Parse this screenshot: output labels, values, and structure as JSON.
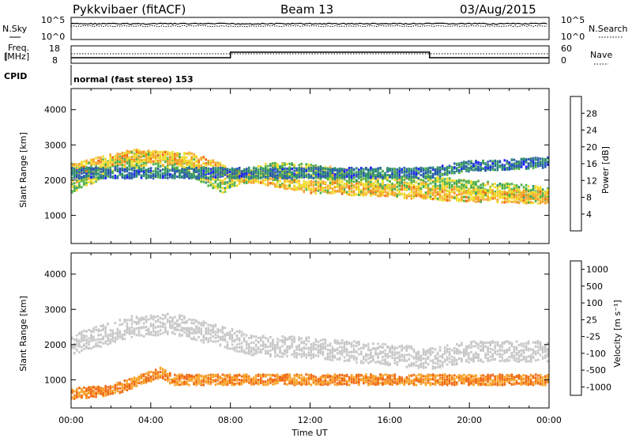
{
  "header": {
    "radar": "Pykkvibaer (fitACF)",
    "beam": "Beam 13",
    "date": "03/Aug/2015"
  },
  "params": {
    "nsky_label": "N.Sky",
    "nsearch_label": "N.Search",
    "noise_ticks": [
      "10^5",
      "10^0"
    ],
    "freq_label_1": "Freq.",
    "freq_label_2": "[MHz]",
    "freq_ticks": [
      18,
      8
    ],
    "nave_label": "Nave",
    "nave_ticks": [
      60,
      0
    ],
    "cpid_label": "CPID",
    "cpid_text": "normal (fast stereo) 153"
  },
  "x_axis": {
    "label": "Time UT",
    "ticks": [
      "00:00",
      "04:00",
      "08:00",
      "12:00",
      "16:00",
      "20:00",
      "00:00"
    ],
    "range_hours": [
      0,
      24
    ]
  },
  "chart_data": [
    {
      "type": "heatmap",
      "panel": "power",
      "ylabel": "Slant Range [km]",
      "yticks": [
        1000,
        2000,
        3000,
        4000
      ],
      "ylim": [
        200,
        4600
      ],
      "colorbar_label": "Power [dB]",
      "colorbar_ticks": [
        4,
        8,
        12,
        16,
        20,
        24,
        28
      ],
      "colorbar_range": [
        0,
        32
      ],
      "colors": [
        "#1e1eff",
        "#2b5bb0",
        "#2f8f6f",
        "#4fb048",
        "#f0dc2a",
        "#f7a52a",
        "#f06a14",
        "#e61e14"
      ],
      "bands": [
        {
          "center": [
            [
              0,
              1800
            ],
            [
              2,
              2400
            ],
            [
              4,
              2650
            ],
            [
              6,
              2300
            ],
            [
              7.5,
              1800
            ],
            [
              8,
              2000
            ],
            [
              10,
              2300
            ],
            [
              12,
              2250
            ],
            [
              14,
              2100
            ],
            [
              16,
              1900
            ],
            [
              17.5,
              1950
            ],
            [
              18,
              1900
            ],
            [
              20,
              1800
            ],
            [
              24,
              1600
            ]
          ],
          "width_km": 400,
          "level": 16
        },
        {
          "center": [
            [
              0,
              2300
            ],
            [
              3,
              2700
            ],
            [
              6,
              2600
            ],
            [
              8,
              2200
            ],
            [
              12,
              1800
            ],
            [
              16,
              1700
            ],
            [
              18,
              1600
            ],
            [
              24,
              1500
            ]
          ],
          "width_km": 350,
          "level": 20
        },
        {
          "center": [
            [
              18,
              2200
            ],
            [
              20,
              2400
            ],
            [
              24,
              2500
            ]
          ],
          "width_km": 300,
          "level": 8
        }
      ]
    },
    {
      "type": "heatmap",
      "panel": "velocity",
      "ylabel": "Slant Range [km]",
      "yticks": [
        1000,
        2000,
        3000,
        4000
      ],
      "ylim": [
        200,
        4600
      ],
      "colorbar_label": "Velocity [m s⁻¹]",
      "colorbar_ticks": [
        1000,
        500,
        100,
        25,
        -25,
        -100,
        -500,
        -1000
      ],
      "colors": [
        "#2020c0",
        "#2b5bb0",
        "#2f8f6f",
        "#6fc040",
        "#c8c8c8",
        "#c8c8c8",
        "#f7a52a",
        "#f06a14",
        "#e61e14"
      ],
      "bands": [
        {
          "center": [
            [
              0,
              2000
            ],
            [
              3,
              2500
            ],
            [
              5,
              2600
            ],
            [
              7,
              2300
            ],
            [
              9,
              2000
            ],
            [
              12,
              1900
            ],
            [
              16,
              1700
            ],
            [
              18,
              1600
            ],
            [
              20,
              1800
            ],
            [
              24,
              1800
            ]
          ],
          "width_km": 600,
          "level": 0
        },
        {
          "center": [
            [
              0,
              600
            ],
            [
              2,
              700
            ],
            [
              4.5,
              1200
            ],
            [
              5,
              1000
            ]
          ],
          "width_km": 300,
          "level": -300
        }
      ]
    }
  ]
}
